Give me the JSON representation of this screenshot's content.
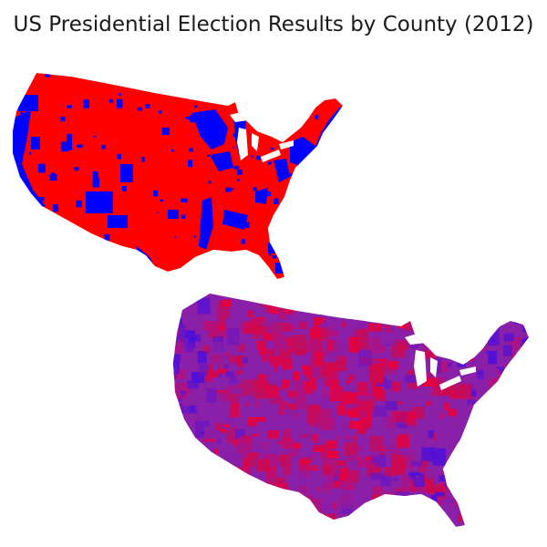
{
  "title": "US Presidential Election Results by County (2012)",
  "maps": [
    {
      "name": "binary-winner-map",
      "fill_colors": {
        "republican": "#ff0000",
        "democrat": "#0000ff"
      }
    },
    {
      "name": "purple-gradient-map",
      "fill_colors": {
        "republican": "#e8003a",
        "democrat": "#5010d8",
        "mixed": "#8a1fa8"
      }
    }
  ],
  "lake_color": "#ffffff"
}
